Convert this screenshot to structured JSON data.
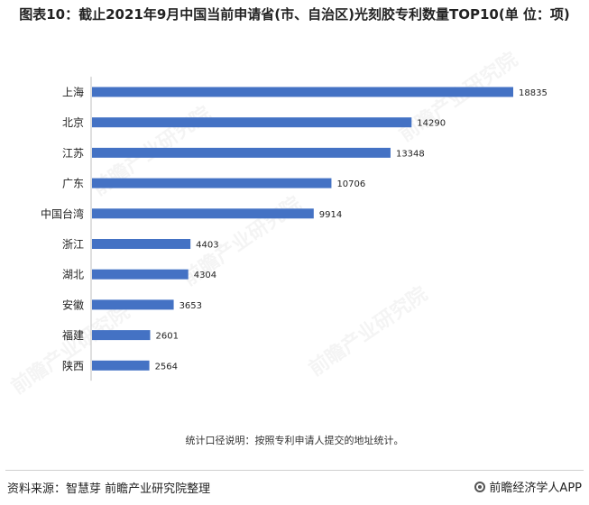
{
  "header": {
    "title": "图表10：截止2021年9月中国当前申请省(市、自治区)光刻胶专利数量TOP10(单 位：项)"
  },
  "chart_data": {
    "type": "bar",
    "orientation": "horizontal",
    "title": "图表10：截止2021年9月中国当前申请省(市、自治区)光刻胶专利数量TOP10(单 位：项)",
    "categories": [
      "上海",
      "北京",
      "江苏",
      "广东",
      "中国台湾",
      "浙江",
      "湖北",
      "安徽",
      "福建",
      "陕西"
    ],
    "values": [
      18835,
      14290,
      13348,
      10706,
      9914,
      4403,
      4304,
      3653,
      2601,
      2564
    ],
    "xlim": [
      0,
      18835
    ],
    "bar_color": "#4472c4",
    "grid": false,
    "legend": "none"
  },
  "note": "统计口径说明：按照专利申请人提交的地址统计。",
  "source": "资料来源：智慧芽 前瞻产业研究院整理",
  "brand": "前瞻经济学人APP",
  "colors": {
    "bar": "#4472c4",
    "axis": "#bfbfbf"
  }
}
